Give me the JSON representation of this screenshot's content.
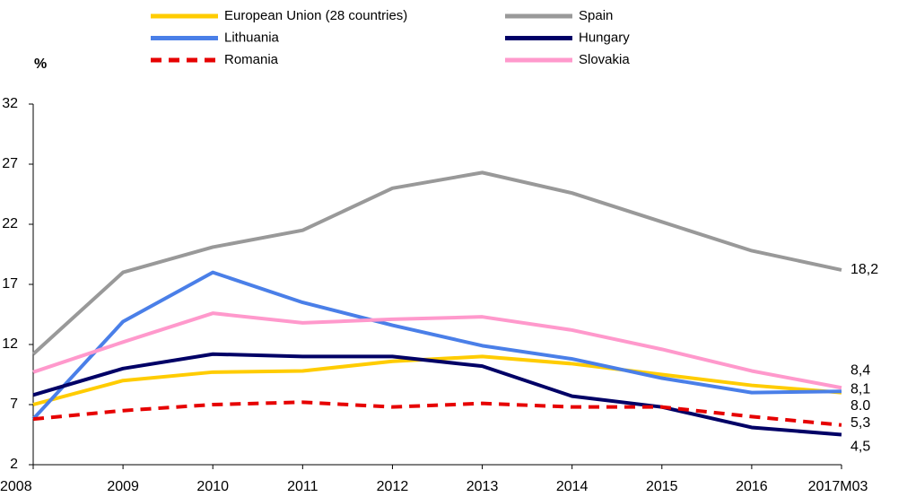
{
  "chart_data": {
    "type": "line",
    "y_label": "%",
    "categories": [
      "2008",
      "2009",
      "2010",
      "2011",
      "2012",
      "2013",
      "2014",
      "2015",
      "2016",
      "2017M03"
    ],
    "series": [
      {
        "name": "European Union (28 countries)",
        "color": "#ffcc00",
        "dashed": false,
        "values": [
          7.0,
          9.0,
          9.7,
          9.8,
          10.6,
          11.0,
          10.4,
          9.5,
          8.6,
          8.0
        ],
        "value_labels": [
          null,
          null,
          null,
          null,
          null,
          null,
          null,
          null,
          null,
          "8.0"
        ]
      },
      {
        "name": "Spain",
        "color": "#999999",
        "dashed": false,
        "values": [
          11.2,
          18.0,
          20.1,
          21.5,
          25.0,
          26.3,
          24.6,
          22.2,
          19.8,
          18.2
        ],
        "value_labels": [
          null,
          null,
          null,
          null,
          null,
          null,
          null,
          null,
          null,
          "18,2"
        ]
      },
      {
        "name": "Lithuania",
        "color": "#4a7fe8",
        "dashed": false,
        "values": [
          5.8,
          13.9,
          18.0,
          15.5,
          13.6,
          11.9,
          10.8,
          9.2,
          8.0,
          8.1
        ],
        "value_labels": [
          null,
          null,
          null,
          null,
          null,
          null,
          null,
          null,
          null,
          "8,1"
        ]
      },
      {
        "name": "Hungary",
        "color": "#000066",
        "dashed": false,
        "values": [
          7.8,
          10.0,
          11.2,
          11.0,
          11.0,
          10.2,
          7.7,
          6.8,
          5.1,
          4.5
        ],
        "value_labels": [
          null,
          null,
          null,
          null,
          null,
          null,
          null,
          null,
          null,
          "4,5"
        ]
      },
      {
        "name": "Romania",
        "color": "#e60000",
        "dashed": true,
        "values": [
          5.8,
          6.5,
          7.0,
          7.2,
          6.8,
          7.1,
          6.8,
          6.8,
          6.0,
          5.3
        ],
        "value_labels": [
          null,
          null,
          null,
          null,
          null,
          null,
          null,
          null,
          null,
          "5,3"
        ]
      },
      {
        "name": "Slovakia",
        "color": "#ff99cc",
        "dashed": false,
        "values": [
          9.7,
          12.2,
          14.6,
          13.8,
          14.1,
          14.3,
          13.2,
          11.6,
          9.8,
          8.4
        ],
        "value_labels": [
          null,
          null,
          null,
          null,
          null,
          null,
          null,
          null,
          null,
          "8,4"
        ]
      }
    ],
    "ylim": [
      2,
      32
    ],
    "yticks": [
      2,
      7,
      12,
      17,
      22,
      27,
      32
    ],
    "grid": false
  }
}
